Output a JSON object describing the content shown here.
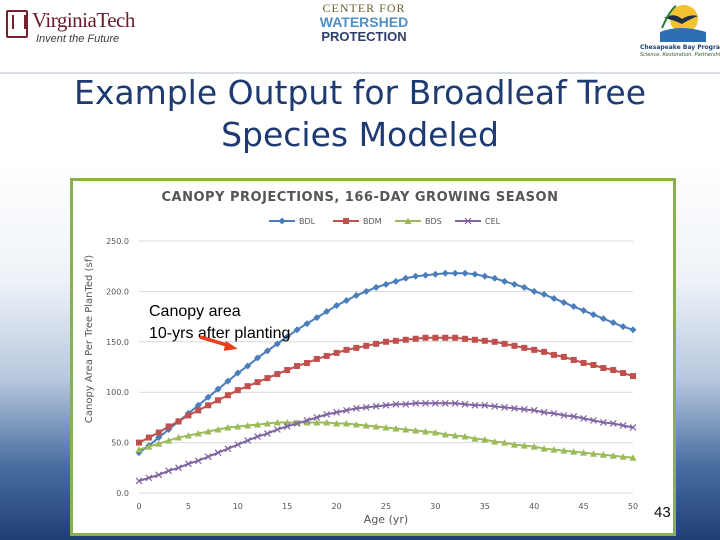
{
  "header": {
    "vt_logo": {
      "name": "VirginiaTech",
      "tagline": "Invent the Future"
    },
    "cwp_logo": {
      "line1": "CENTER FOR",
      "line2": "WATERSHED",
      "line3": "PROTECTION"
    },
    "cbp_logo": {
      "name": "Chesapeake Bay Program",
      "tagline": "Science. Restoration. Partnership."
    }
  },
  "slide": {
    "title": "Example Output for Broadleaf Tree Species Modeled",
    "number": "43"
  },
  "chart_data": {
    "type": "line",
    "title": "CANOPY PROJECTIONS, 166-DAY GROWING SEASON",
    "xlabel": "Age (yr)",
    "ylabel": "Canopy Area Per Tree PlanTed (sf)",
    "xlim": [
      0,
      50
    ],
    "ylim": [
      0,
      250
    ],
    "x_ticks": [
      "0",
      "5",
      "10",
      "15",
      "20",
      "25",
      "30",
      "35",
      "40",
      "45",
      "50"
    ],
    "y_ticks": [
      "0.0",
      "50.0",
      "100.0",
      "150.0",
      "200.0",
      "250.0"
    ],
    "legend_position": "top-center",
    "grid": "horizontal",
    "annotation": {
      "text_line1": "Canopy area",
      "text_line2": "10-yrs after planting",
      "points_to": {
        "x": 10,
        "y": 133
      }
    },
    "series": [
      {
        "name": "BDL",
        "color": "#4a7ebb",
        "marker": "diamond",
        "values": [
          40,
          47,
          55,
          63,
          71,
          79,
          87,
          95,
          103,
          111,
          119,
          126,
          134,
          141,
          148,
          155,
          162,
          168,
          174,
          180,
          186,
          191,
          196,
          200,
          204,
          207,
          210,
          213,
          215,
          216,
          217,
          218,
          218,
          218,
          217,
          215,
          213,
          210,
          207,
          204,
          200,
          197,
          193,
          189,
          185,
          181,
          177,
          173,
          169,
          165,
          162
        ]
      },
      {
        "name": "BDM",
        "color": "#c0504d",
        "marker": "square",
        "values": [
          50,
          55,
          60,
          66,
          71,
          77,
          82,
          87,
          92,
          97,
          102,
          106,
          110,
          114,
          118,
          122,
          126,
          129,
          133,
          136,
          139,
          142,
          144,
          146,
          148,
          150,
          151,
          152,
          153,
          154,
          154,
          154,
          154,
          153,
          152,
          151,
          150,
          148,
          146,
          144,
          142,
          140,
          137,
          135,
          132,
          129,
          127,
          124,
          122,
          119,
          116
        ]
      },
      {
        "name": "BDS",
        "color": "#9bbb59",
        "marker": "triangle",
        "values": [
          43,
          46,
          49,
          52,
          55,
          57,
          59,
          61,
          63,
          65,
          66,
          67,
          68,
          69,
          70,
          70,
          70,
          70,
          70,
          70,
          69,
          69,
          68,
          67,
          66,
          65,
          64,
          63,
          62,
          61,
          60,
          58,
          57,
          56,
          54,
          53,
          51,
          50,
          48,
          47,
          46,
          44,
          43,
          42,
          41,
          40,
          39,
          38,
          37,
          36,
          35
        ]
      },
      {
        "name": "CEL",
        "color": "#8064a2",
        "marker": "x",
        "values": [
          12,
          15,
          18,
          22,
          25,
          29,
          32,
          36,
          40,
          44,
          48,
          52,
          56,
          59,
          63,
          66,
          69,
          72,
          75,
          78,
          80,
          82,
          84,
          85,
          86,
          87,
          88,
          88,
          89,
          89,
          89,
          89,
          89,
          88,
          87,
          87,
          86,
          85,
          84,
          83,
          82,
          80,
          79,
          77,
          76,
          74,
          72,
          70,
          69,
          67,
          65
        ]
      }
    ]
  }
}
